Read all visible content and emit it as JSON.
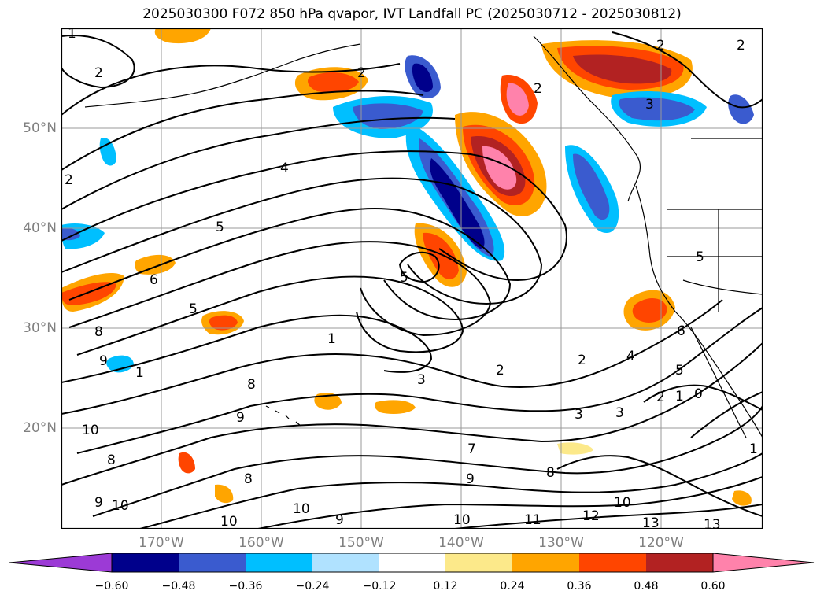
{
  "title": "2025030300 F072 850 hPa qvapor, IVT Landfall PC (2025030712 - 2025030812)",
  "lat_labels": [
    "50°N",
    "40°N",
    "30°N",
    "20°N"
  ],
  "lon_labels": [
    "170°W",
    "160°W",
    "150°W",
    "140°W",
    "130°W",
    "120°W"
  ],
  "colorbar": {
    "colors": [
      "#9c3ad6",
      "#00008b",
      "#3a5bcf",
      "#00bfff",
      "#b0e2ff",
      "#ffffff",
      "#fce98a",
      "#ffa500",
      "#ff4500",
      "#b22222",
      "#ff82ab"
    ],
    "ticks": [
      "−0.60",
      "−0.48",
      "−0.36",
      "−0.24",
      "−0.12",
      "0.12",
      "0.24",
      "0.36",
      "0.48",
      "0.60"
    ]
  },
  "contour_labels": [
    "1",
    "2",
    "2",
    "2",
    "3",
    "2",
    "4",
    "5",
    "5",
    "6",
    "5",
    "8",
    "9",
    "1",
    "1",
    "3",
    "2",
    "2",
    "4",
    "6",
    "5",
    "2",
    "1",
    "0",
    "3",
    "3",
    "7",
    "8",
    "9",
    "10",
    "11",
    "12",
    "13",
    "13",
    "10",
    "10",
    "9",
    "10",
    "9",
    "10",
    "8",
    "8",
    "9",
    "10",
    "8",
    "2",
    "2",
    "5",
    "1"
  ]
}
